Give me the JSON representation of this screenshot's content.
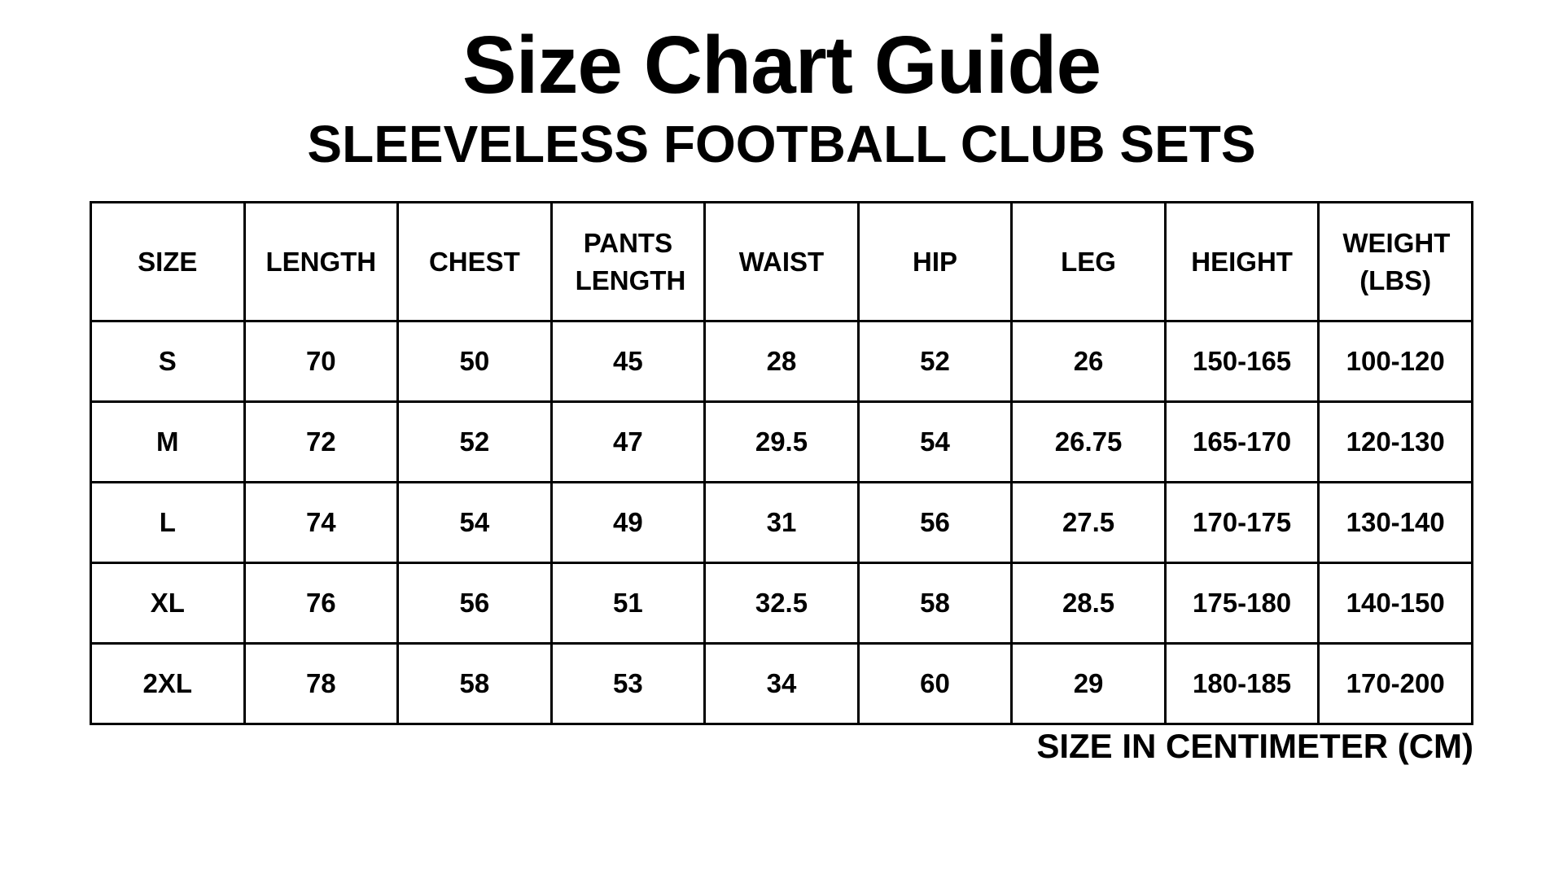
{
  "header": {
    "title": "Size Chart Guide",
    "subtitle": "SLEEVELESS FOOTBALL CLUB SETS"
  },
  "table": {
    "columns": [
      "SIZE",
      "LENGTH",
      "CHEST",
      "PANTS LENGTH",
      "WAIST",
      "HIP",
      "LEG",
      "HEIGHT",
      "WEIGHT (LBS)"
    ],
    "rows": [
      [
        "S",
        70,
        50,
        45,
        28,
        52,
        26,
        "150-165",
        "100-120"
      ],
      [
        "M",
        72,
        52,
        47,
        29.5,
        54,
        26.75,
        "165-170",
        "120-130"
      ],
      [
        "L",
        74,
        54,
        49,
        31,
        56,
        27.5,
        "170-175",
        "130-140"
      ],
      [
        "XL",
        76,
        56,
        51,
        32.5,
        58,
        28.5,
        "175-180",
        "140-150"
      ],
      [
        "2XL",
        78,
        58,
        53,
        34,
        60,
        29,
        "180-185",
        "170-200"
      ]
    ]
  },
  "footer": {
    "note": "SIZE IN CENTIMETER (CM)"
  }
}
